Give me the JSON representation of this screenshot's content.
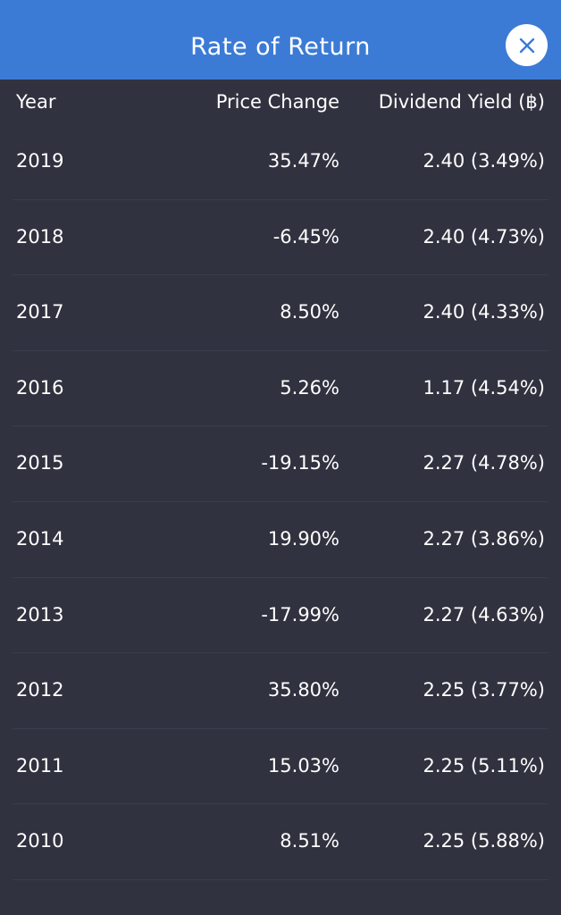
{
  "header": {
    "title": "Rate of Return",
    "close_icon": "close-icon",
    "background": "#3b7bd6"
  },
  "columns": {
    "year": "Year",
    "price_change": "Price Change",
    "dividend_yield": "Dividend Yield (฿)"
  },
  "rows": [
    {
      "year": "2019",
      "price_change": "35.47%",
      "dividend_yield": "2.40 (3.49%)"
    },
    {
      "year": "2018",
      "price_change": "-6.45%",
      "dividend_yield": "2.40 (4.73%)"
    },
    {
      "year": "2017",
      "price_change": "8.50%",
      "dividend_yield": "2.40 (4.33%)"
    },
    {
      "year": "2016",
      "price_change": "5.26%",
      "dividend_yield": "1.17 (4.54%)"
    },
    {
      "year": "2015",
      "price_change": "-19.15%",
      "dividend_yield": "2.27 (4.78%)"
    },
    {
      "year": "2014",
      "price_change": "19.90%",
      "dividend_yield": "2.27 (3.86%)"
    },
    {
      "year": "2013",
      "price_change": "-17.99%",
      "dividend_yield": "2.27 (4.63%)"
    },
    {
      "year": "2012",
      "price_change": "35.80%",
      "dividend_yield": "2.25 (3.77%)"
    },
    {
      "year": "2011",
      "price_change": "15.03%",
      "dividend_yield": "2.25 (5.11%)"
    },
    {
      "year": "2010",
      "price_change": "8.51%",
      "dividend_yield": "2.25 (5.88%)"
    }
  ]
}
